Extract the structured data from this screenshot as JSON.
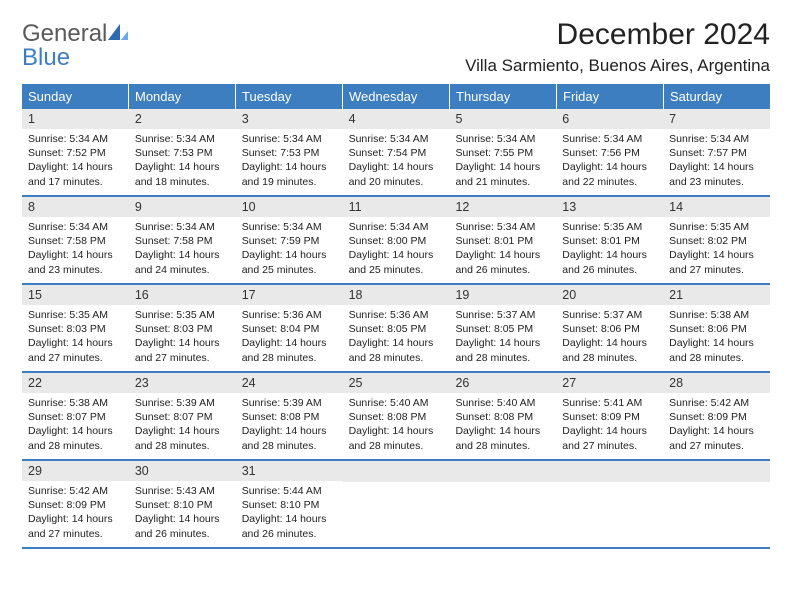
{
  "logo": {
    "text1": "General",
    "text2": "Blue",
    "color1": "#5a5a5a",
    "color2": "#3d7ec1"
  },
  "title": "December 2024",
  "location": "Villa Sarmiento, Buenos Aires, Argentina",
  "colors": {
    "header_bg": "#3d7ec1",
    "header_text": "#ffffff",
    "daynum_bg": "#e9e9e9",
    "week_border": "#3d7ec1",
    "page_bg": "#ffffff",
    "body_text": "#222222"
  },
  "fonts": {
    "title_size": 30,
    "location_size": 17,
    "dayhead_size": 13,
    "daynum_size": 12.5,
    "body_size": 10.5
  },
  "day_headers": [
    "Sunday",
    "Monday",
    "Tuesday",
    "Wednesday",
    "Thursday",
    "Friday",
    "Saturday"
  ],
  "weeks": [
    [
      {
        "n": "1",
        "sr": "Sunrise: 5:34 AM",
        "ss": "Sunset: 7:52 PM",
        "d1": "Daylight: 14 hours",
        "d2": "and 17 minutes."
      },
      {
        "n": "2",
        "sr": "Sunrise: 5:34 AM",
        "ss": "Sunset: 7:53 PM",
        "d1": "Daylight: 14 hours",
        "d2": "and 18 minutes."
      },
      {
        "n": "3",
        "sr": "Sunrise: 5:34 AM",
        "ss": "Sunset: 7:53 PM",
        "d1": "Daylight: 14 hours",
        "d2": "and 19 minutes."
      },
      {
        "n": "4",
        "sr": "Sunrise: 5:34 AM",
        "ss": "Sunset: 7:54 PM",
        "d1": "Daylight: 14 hours",
        "d2": "and 20 minutes."
      },
      {
        "n": "5",
        "sr": "Sunrise: 5:34 AM",
        "ss": "Sunset: 7:55 PM",
        "d1": "Daylight: 14 hours",
        "d2": "and 21 minutes."
      },
      {
        "n": "6",
        "sr": "Sunrise: 5:34 AM",
        "ss": "Sunset: 7:56 PM",
        "d1": "Daylight: 14 hours",
        "d2": "and 22 minutes."
      },
      {
        "n": "7",
        "sr": "Sunrise: 5:34 AM",
        "ss": "Sunset: 7:57 PM",
        "d1": "Daylight: 14 hours",
        "d2": "and 23 minutes."
      }
    ],
    [
      {
        "n": "8",
        "sr": "Sunrise: 5:34 AM",
        "ss": "Sunset: 7:58 PM",
        "d1": "Daylight: 14 hours",
        "d2": "and 23 minutes."
      },
      {
        "n": "9",
        "sr": "Sunrise: 5:34 AM",
        "ss": "Sunset: 7:58 PM",
        "d1": "Daylight: 14 hours",
        "d2": "and 24 minutes."
      },
      {
        "n": "10",
        "sr": "Sunrise: 5:34 AM",
        "ss": "Sunset: 7:59 PM",
        "d1": "Daylight: 14 hours",
        "d2": "and 25 minutes."
      },
      {
        "n": "11",
        "sr": "Sunrise: 5:34 AM",
        "ss": "Sunset: 8:00 PM",
        "d1": "Daylight: 14 hours",
        "d2": "and 25 minutes."
      },
      {
        "n": "12",
        "sr": "Sunrise: 5:34 AM",
        "ss": "Sunset: 8:01 PM",
        "d1": "Daylight: 14 hours",
        "d2": "and 26 minutes."
      },
      {
        "n": "13",
        "sr": "Sunrise: 5:35 AM",
        "ss": "Sunset: 8:01 PM",
        "d1": "Daylight: 14 hours",
        "d2": "and 26 minutes."
      },
      {
        "n": "14",
        "sr": "Sunrise: 5:35 AM",
        "ss": "Sunset: 8:02 PM",
        "d1": "Daylight: 14 hours",
        "d2": "and 27 minutes."
      }
    ],
    [
      {
        "n": "15",
        "sr": "Sunrise: 5:35 AM",
        "ss": "Sunset: 8:03 PM",
        "d1": "Daylight: 14 hours",
        "d2": "and 27 minutes."
      },
      {
        "n": "16",
        "sr": "Sunrise: 5:35 AM",
        "ss": "Sunset: 8:03 PM",
        "d1": "Daylight: 14 hours",
        "d2": "and 27 minutes."
      },
      {
        "n": "17",
        "sr": "Sunrise: 5:36 AM",
        "ss": "Sunset: 8:04 PM",
        "d1": "Daylight: 14 hours",
        "d2": "and 28 minutes."
      },
      {
        "n": "18",
        "sr": "Sunrise: 5:36 AM",
        "ss": "Sunset: 8:05 PM",
        "d1": "Daylight: 14 hours",
        "d2": "and 28 minutes."
      },
      {
        "n": "19",
        "sr": "Sunrise: 5:37 AM",
        "ss": "Sunset: 8:05 PM",
        "d1": "Daylight: 14 hours",
        "d2": "and 28 minutes."
      },
      {
        "n": "20",
        "sr": "Sunrise: 5:37 AM",
        "ss": "Sunset: 8:06 PM",
        "d1": "Daylight: 14 hours",
        "d2": "and 28 minutes."
      },
      {
        "n": "21",
        "sr": "Sunrise: 5:38 AM",
        "ss": "Sunset: 8:06 PM",
        "d1": "Daylight: 14 hours",
        "d2": "and 28 minutes."
      }
    ],
    [
      {
        "n": "22",
        "sr": "Sunrise: 5:38 AM",
        "ss": "Sunset: 8:07 PM",
        "d1": "Daylight: 14 hours",
        "d2": "and 28 minutes."
      },
      {
        "n": "23",
        "sr": "Sunrise: 5:39 AM",
        "ss": "Sunset: 8:07 PM",
        "d1": "Daylight: 14 hours",
        "d2": "and 28 minutes."
      },
      {
        "n": "24",
        "sr": "Sunrise: 5:39 AM",
        "ss": "Sunset: 8:08 PM",
        "d1": "Daylight: 14 hours",
        "d2": "and 28 minutes."
      },
      {
        "n": "25",
        "sr": "Sunrise: 5:40 AM",
        "ss": "Sunset: 8:08 PM",
        "d1": "Daylight: 14 hours",
        "d2": "and 28 minutes."
      },
      {
        "n": "26",
        "sr": "Sunrise: 5:40 AM",
        "ss": "Sunset: 8:08 PM",
        "d1": "Daylight: 14 hours",
        "d2": "and 28 minutes."
      },
      {
        "n": "27",
        "sr": "Sunrise: 5:41 AM",
        "ss": "Sunset: 8:09 PM",
        "d1": "Daylight: 14 hours",
        "d2": "and 27 minutes."
      },
      {
        "n": "28",
        "sr": "Sunrise: 5:42 AM",
        "ss": "Sunset: 8:09 PM",
        "d1": "Daylight: 14 hours",
        "d2": "and 27 minutes."
      }
    ],
    [
      {
        "n": "29",
        "sr": "Sunrise: 5:42 AM",
        "ss": "Sunset: 8:09 PM",
        "d1": "Daylight: 14 hours",
        "d2": "and 27 minutes."
      },
      {
        "n": "30",
        "sr": "Sunrise: 5:43 AM",
        "ss": "Sunset: 8:10 PM",
        "d1": "Daylight: 14 hours",
        "d2": "and 26 minutes."
      },
      {
        "n": "31",
        "sr": "Sunrise: 5:44 AM",
        "ss": "Sunset: 8:10 PM",
        "d1": "Daylight: 14 hours",
        "d2": "and 26 minutes."
      },
      {
        "blank": true
      },
      {
        "blank": true
      },
      {
        "blank": true
      },
      {
        "blank": true
      }
    ]
  ]
}
